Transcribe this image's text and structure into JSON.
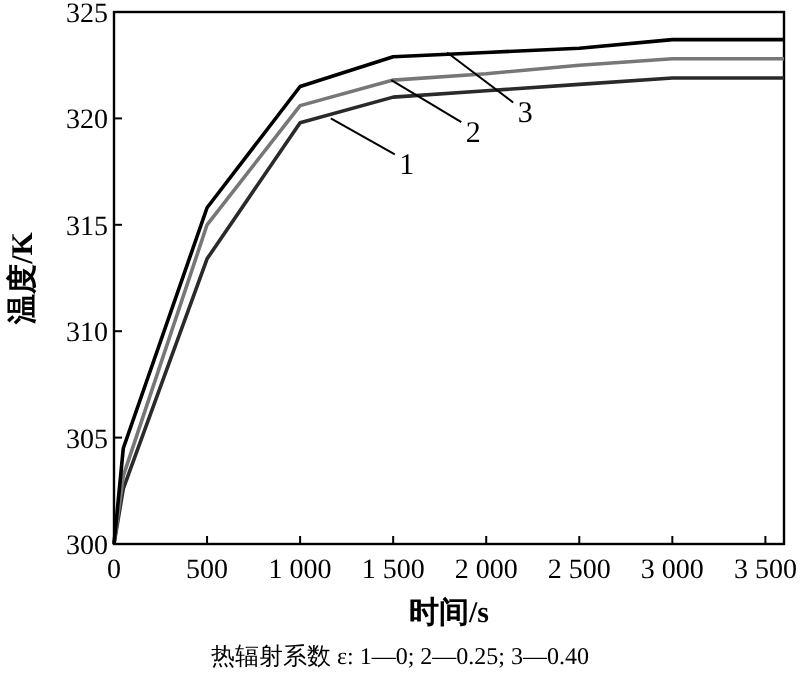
{
  "chart_data": {
    "type": "line",
    "xlabel": "时间/s",
    "ylabel": "温度/K",
    "x": [
      0,
      50,
      500,
      1000,
      1500,
      2000,
      2500,
      3000,
      3600
    ],
    "series": [
      {
        "color": "#2a2a2a",
        "values": [
          300,
          302.6,
          313.4,
          319.8,
          321.0,
          321.3,
          321.6,
          321.9,
          321.9
        ]
      },
      {
        "color": "#777777",
        "values": [
          300,
          303.2,
          315.0,
          320.6,
          321.8,
          322.1,
          322.5,
          322.8,
          322.8
        ]
      },
      {
        "color": "#000000",
        "values": [
          300,
          304.5,
          315.8,
          321.5,
          322.9,
          323.1,
          323.3,
          323.7,
          323.7
        ]
      }
    ],
    "xlim": [
      0,
      3600
    ],
    "xticks": [
      0,
      500,
      {
        "value": 1000,
        "label": "1 000"
      },
      {
        "value": 1500,
        "label": "1 500"
      },
      {
        "value": 2000,
        "label": "2 000"
      },
      {
        "value": 2500,
        "label": "2 500"
      },
      {
        "value": 3000,
        "label": "3 000"
      },
      {
        "value": 3500,
        "label": "3 500"
      }
    ],
    "ylim": [
      300,
      325
    ],
    "yticks": [
      300,
      305,
      310,
      315,
      320,
      325
    ],
    "annotations": [
      {
        "text": "1",
        "x": 1165,
        "y": 320.0
      },
      {
        "text": "2",
        "x": 1490,
        "y": 321.8
      },
      {
        "text": "3",
        "x": 1790,
        "y": 323.1
      },
      "热辐射系数 ε: 1—0; 2—0.25; 3—0.40"
    ],
    "grid": false,
    "line_style": "solid",
    "marker": "none"
  }
}
